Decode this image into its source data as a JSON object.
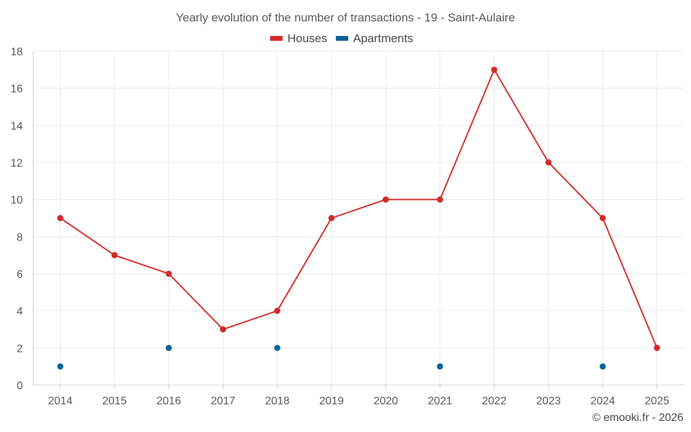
{
  "chart_data": {
    "type": "line",
    "title": "Yearly evolution of the number of transactions - 19 - Saint-Aulaire",
    "categories": [
      "2014",
      "2015",
      "2016",
      "2017",
      "2018",
      "2019",
      "2020",
      "2021",
      "2022",
      "2023",
      "2024",
      "2025"
    ],
    "series": [
      {
        "name": "Houses",
        "color": "#d32a2a",
        "values": [
          9,
          7,
          6,
          3,
          4,
          9,
          10,
          10,
          17,
          12,
          9,
          2
        ]
      },
      {
        "name": "Apartments",
        "color": "#0a649a",
        "values": [
          1,
          null,
          2,
          null,
          2,
          null,
          null,
          1,
          null,
          null,
          1,
          null
        ]
      }
    ],
    "ylim": [
      0,
      18
    ],
    "yticks": [
      0,
      2,
      4,
      6,
      8,
      10,
      12,
      14,
      16,
      18
    ],
    "grid": true,
    "legend": "top-center"
  },
  "credit": "© emooki.fr - 2026"
}
